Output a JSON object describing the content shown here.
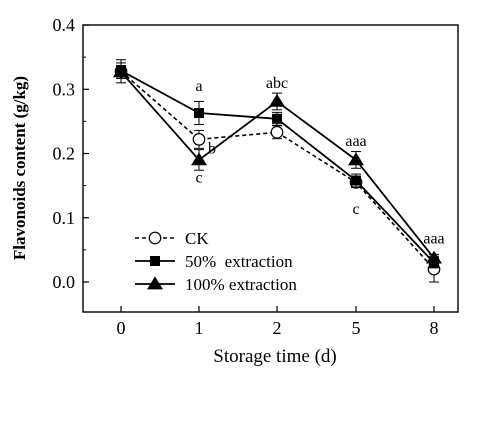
{
  "chart_data": {
    "type": "line",
    "title": "",
    "xlabel": "Storage time (d)",
    "ylabel": "Flavonoids content (g/kg)",
    "categories": [
      "0",
      "1",
      "2",
      "5",
      "8"
    ],
    "ylim": [
      0,
      0.4
    ],
    "yticks": [
      "0.0",
      "0.1",
      "0.2",
      "0.3",
      "0.4"
    ],
    "grid": false,
    "legend_position": "bottom-left",
    "series": [
      {
        "name": "CK",
        "marker": "open-circle",
        "line": "dashed",
        "values": [
          0.328,
          0.222,
          0.233,
          0.155,
          0.02
        ],
        "errors": [
          0.018,
          0.014,
          0.01,
          0.008,
          0.02
        ]
      },
      {
        "name": "50%  extraction",
        "marker": "filled-square",
        "line": "solid",
        "values": [
          0.329,
          0.263,
          0.254,
          0.158,
          0.03
        ],
        "errors": [
          0.012,
          0.018,
          0.01,
          0.01,
          0.008
        ]
      },
      {
        "name": "100% extraction",
        "marker": "filled-triangle",
        "line": "solid",
        "values": [
          0.327,
          0.19,
          0.281,
          0.19,
          0.037
        ],
        "errors": [
          0.01,
          0.016,
          0.013,
          0.013,
          0.006
        ]
      }
    ],
    "annotations": [
      {
        "text": "a",
        "x": "1",
        "y": 0.297
      },
      {
        "text": "b",
        "x": "1",
        "y": 0.2
      },
      {
        "text": "c",
        "x": "1",
        "y": 0.155
      },
      {
        "text": "abc",
        "x": "2",
        "y": 0.302
      },
      {
        "text": "aaa",
        "x": "5",
        "y": 0.212
      },
      {
        "text": "c",
        "x": "5",
        "y": 0.106
      },
      {
        "text": "aaa",
        "x": "8",
        "y": 0.06
      }
    ]
  }
}
